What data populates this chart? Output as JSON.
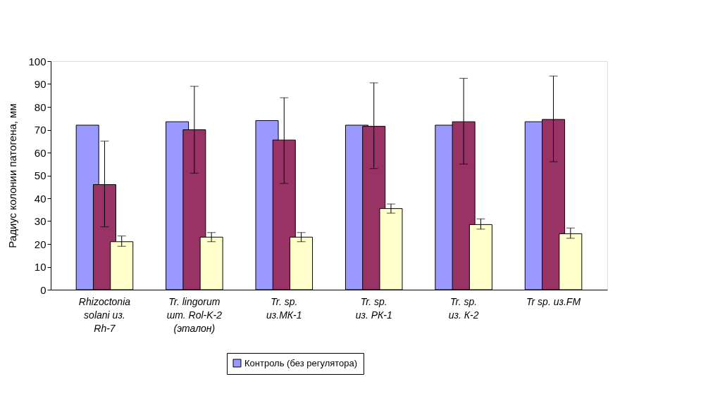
{
  "chart_data": {
    "type": "bar",
    "ylabel": "Радиус колонии патогена, мм",
    "categories": [
      "Rhizoctonia\nsolani из.\nRh-7",
      "Tr. lingorum\nшт. Rol-K-2\n(эталон)",
      "Tr. sp.\nиз.МК-1",
      "Tr. sp.\nиз. РК-1",
      "Tr. sp.\nиз. К-2",
      "Tr sp. из.FM"
    ],
    "series": [
      {
        "name": "Контроль (без регулятора)",
        "color": "#9999ff",
        "values": [
          72,
          73.5,
          74,
          72,
          72,
          73.5
        ]
      },
      {
        "color": "#993366",
        "values": [
          46,
          70,
          65.5,
          71.5,
          73.5,
          74.5
        ],
        "errors": [
          [
            27.5,
            65
          ],
          [
            51,
            89
          ],
          [
            46.5,
            84
          ],
          [
            53,
            90.5
          ],
          [
            55,
            92.5
          ],
          [
            56,
            93.5
          ]
        ]
      },
      {
        "color": "#ffffcc",
        "values": [
          21,
          23,
          23,
          35.5,
          28.5,
          24.5
        ],
        "errors": [
          [
            19,
            23.5
          ],
          [
            21,
            25
          ],
          [
            21,
            25
          ],
          [
            33.5,
            37.5
          ],
          [
            26.5,
            31
          ],
          [
            22.5,
            27
          ]
        ]
      }
    ],
    "ylim": [
      0,
      100
    ],
    "yticks": [
      0,
      10,
      20,
      30,
      40,
      50,
      60,
      70,
      80,
      90,
      100
    ],
    "grid": false,
    "legend": "bottom"
  }
}
